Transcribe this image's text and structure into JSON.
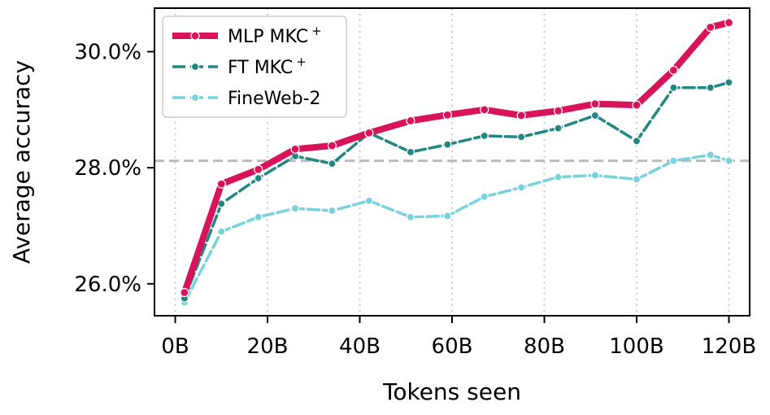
{
  "chart_data": {
    "type": "line",
    "title": "",
    "xlabel": "Tokens seen",
    "ylabel": "Average accuracy",
    "xlim": [
      -4.5,
      124.5
    ],
    "ylim": [
      25.45,
      30.75
    ],
    "x_ticks": [
      0,
      20,
      40,
      60,
      80,
      100,
      120
    ],
    "x_tick_labels": [
      "0B",
      "20B",
      "40B",
      "60B",
      "80B",
      "100B",
      "120B"
    ],
    "y_ticks": [
      26,
      28,
      30
    ],
    "y_tick_labels": [
      "26.0%",
      "28.0%",
      "30.0%"
    ],
    "grid": "vertical dotted",
    "legend_position": "top-left",
    "reference_line": {
      "y": 28.12,
      "style": "dashed",
      "color": "#bbbbbb"
    },
    "x": [
      2,
      10,
      18,
      26,
      34,
      42,
      51,
      59,
      67,
      75,
      83,
      91,
      100,
      108,
      116,
      120
    ],
    "series": [
      {
        "name": "MLP MKC",
        "name_sup": "+",
        "color": "#d7135a",
        "values": [
          25.85,
          27.72,
          27.97,
          28.32,
          28.38,
          28.6,
          28.81,
          28.91,
          29.0,
          28.9,
          28.98,
          29.1,
          29.08,
          29.68,
          30.42,
          30.5
        ]
      },
      {
        "name": "FT MKC",
        "name_sup": "+",
        "color": "#228782",
        "values": [
          25.75,
          27.38,
          27.82,
          28.2,
          28.07,
          28.6,
          28.27,
          28.4,
          28.55,
          28.53,
          28.68,
          28.9,
          28.46,
          29.38,
          29.38,
          29.47
        ]
      },
      {
        "name": "FineWeb-2",
        "name_sup": "",
        "color": "#78d2dc",
        "values": [
          25.68,
          26.9,
          27.15,
          27.3,
          27.26,
          27.43,
          27.15,
          27.17,
          27.5,
          27.66,
          27.84,
          27.87,
          27.8,
          28.12,
          28.22,
          28.12
        ]
      }
    ]
  }
}
